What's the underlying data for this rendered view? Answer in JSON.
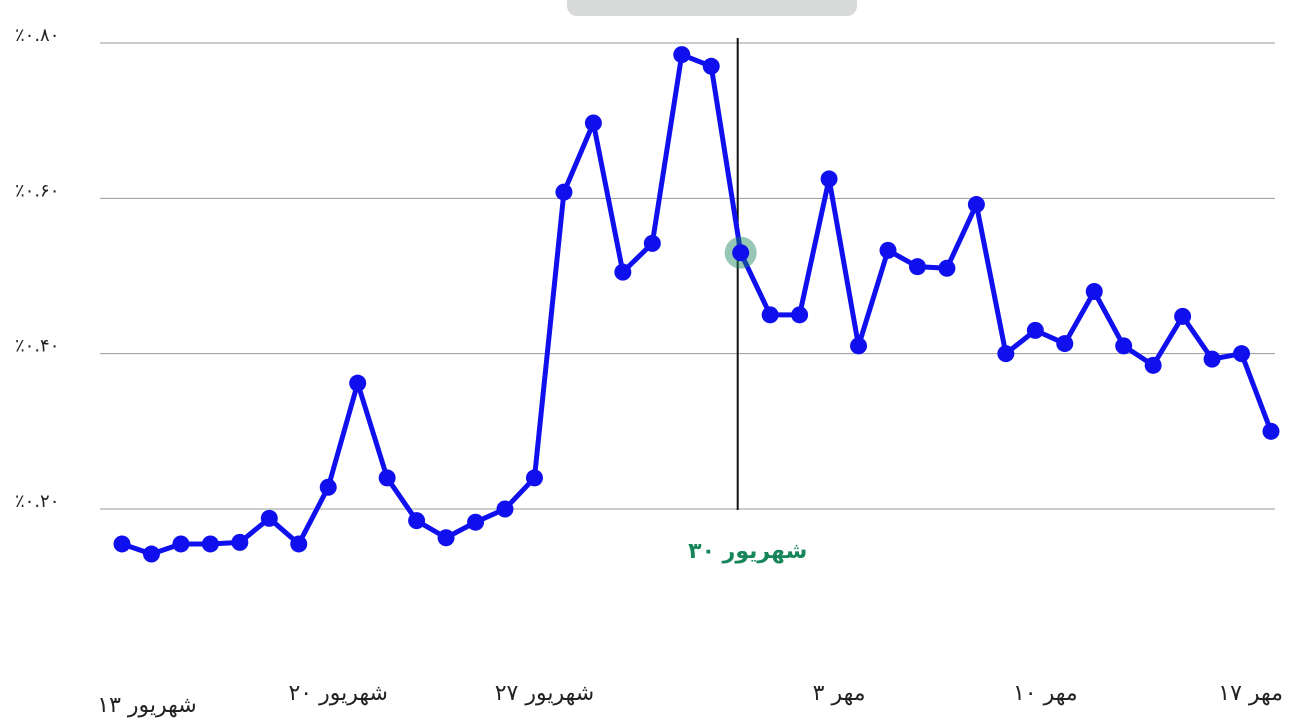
{
  "colors": {
    "line": "#1010ee",
    "highlight": "#16865a",
    "grid": "#9a9a9a",
    "cursor": "#111111",
    "tooltip_bg": "#d9dbdb"
  },
  "tooltip": {
    "text": ""
  },
  "highlight": {
    "index": 21,
    "label": "۳۰ شهریور"
  },
  "chart_data": {
    "type": "line",
    "title": "",
    "xlabel": "",
    "ylabel": "",
    "ylim": [
      0.1,
      0.83
    ],
    "y_ticks": [
      {
        "value": 0.2,
        "label": "٪۰.۲۰"
      },
      {
        "value": 0.4,
        "label": "٪۰.۴۰"
      },
      {
        "value": 0.6,
        "label": "٪۰.۶۰"
      },
      {
        "value": 0.8,
        "label": "٪۰.۸۰"
      }
    ],
    "x_ticks": [
      {
        "index": 0,
        "label": "۱۳ شهریور"
      },
      {
        "index": 7,
        "label": "۲۰ شهریور"
      },
      {
        "index": 14,
        "label": "۲۷ شهریور"
      },
      {
        "index": 24,
        "label": "۳ مهر"
      },
      {
        "index": 31,
        "label": "۱۰ مهر"
      },
      {
        "index": 38,
        "label": "۱۷ مهر"
      }
    ],
    "grid": true,
    "legend": "none",
    "series": [
      {
        "values": [
          0.155,
          0.142,
          0.155,
          0.155,
          0.157,
          0.188,
          0.155,
          0.228,
          0.362,
          0.24,
          0.185,
          0.163,
          0.183,
          0.2,
          0.24,
          0.608,
          0.697,
          0.505,
          0.542,
          0.785,
          0.77,
          0.53,
          0.45,
          0.45,
          0.625,
          0.41,
          0.533,
          0.512,
          0.51,
          0.592,
          0.4,
          0.43,
          0.413,
          0.48,
          0.41,
          0.385,
          0.448,
          0.393,
          0.4,
          0.3
        ]
      }
    ]
  }
}
